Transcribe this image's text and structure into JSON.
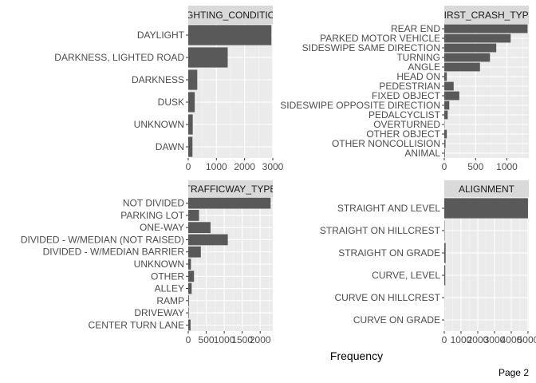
{
  "x_axis_title": "Frequency",
  "page_label": "Page 2",
  "colors": {
    "bar": "#595959",
    "panel": "#ebebeb",
    "strip": "#d9d9d9",
    "grid_major": "#ffffff",
    "grid_minor": "#f5f5f5",
    "tick_text": "#4d4d4d",
    "tick_mark": "#333333"
  },
  "chart_data": [
    {
      "type": "bar",
      "orientation": "horizontal",
      "title": "GHTING_CONDITIO",
      "categories": [
        "DAYLIGHT",
        "DARKNESS, LIGHTED ROAD",
        "DARKNESS",
        "DUSK",
        "UNKNOWN",
        "DAWN"
      ],
      "values": [
        2950,
        1400,
        320,
        230,
        160,
        150
      ],
      "xlim": [
        0,
        3000
      ],
      "xticks": [
        0,
        1000,
        2000,
        3000
      ],
      "xlabel": "Frequency",
      "ylabel": "",
      "grid": true
    },
    {
      "type": "bar",
      "orientation": "horizontal",
      "title": "FIRST_CRASH_TYPE",
      "categories": [
        "REAR END",
        "PARKED MOTOR VEHICLE",
        "SIDESWIPE SAME DIRECTION",
        "TURNING",
        "ANGLE",
        "HEAD ON",
        "PEDESTRIAN",
        "FIXED OBJECT",
        "SIDESWIPE OPPOSITE DIRECTION",
        "PEDALCYCLIST",
        "OVERTURNED",
        "OTHER OBJECT",
        "OTHER NONCOLLISION",
        "ANIMAL"
      ],
      "values": [
        1330,
        1060,
        830,
        730,
        570,
        40,
        150,
        240,
        80,
        55,
        5,
        40,
        20,
        10
      ],
      "xlim": [
        0,
        1350
      ],
      "xticks": [
        0,
        500,
        1000
      ],
      "xlabel": "Frequency",
      "ylabel": "",
      "grid": true
    },
    {
      "type": "bar",
      "orientation": "horizontal",
      "title": "TRAFFICWAY_TYPE",
      "categories": [
        "NOT DIVIDED",
        "PARKING LOT",
        "ONE-WAY",
        "DIVIDED - W/MEDIAN (NOT RAISED)",
        "DIVIDED - W/MEDIAN BARRIER",
        "UNKNOWN",
        "OTHER",
        "ALLEY",
        "RAMP",
        "DRIVEWAY",
        "CENTER TURN LANE"
      ],
      "values": [
        2290,
        300,
        620,
        1100,
        350,
        75,
        160,
        95,
        20,
        15,
        65
      ],
      "xlim": [
        0,
        2350
      ],
      "xticks": [
        0,
        500,
        1000,
        1500,
        2000
      ],
      "xlabel": "Frequency",
      "ylabel": "",
      "grid": true
    },
    {
      "type": "bar",
      "orientation": "horizontal",
      "title": "ALIGNMENT",
      "categories": [
        "STRAIGHT AND LEVEL",
        "STRAIGHT ON HILLCREST",
        "STRAIGHT ON GRADE",
        "CURVE, LEVEL",
        "CURVE ON HILLCREST",
        "CURVE ON GRADE"
      ],
      "values": [
        5000,
        20,
        80,
        60,
        5,
        5
      ],
      "xlim": [
        0,
        5050
      ],
      "xticks": [
        0,
        1000,
        2000,
        3000,
        4000,
        5000
      ],
      "xlabel": "Frequency",
      "ylabel": "",
      "grid": true
    }
  ]
}
